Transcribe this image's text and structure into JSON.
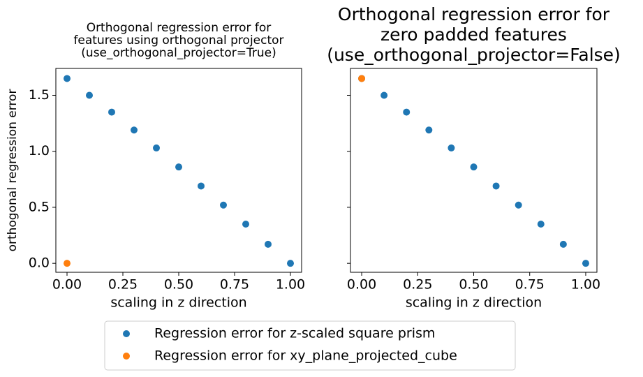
{
  "chart_data": [
    {
      "type": "scatter",
      "title": [
        "Orthogonal regression error for",
        "features using orthogonal projector",
        "(use_orthogonal_projector=True)"
      ],
      "x_label": "scaling in z direction",
      "y_label": "orthogonal regression error",
      "series": [
        {
          "name": "Regression error for z-scaled square prism",
          "color": "#1f77b4",
          "x": [
            0,
            0.1,
            0.2,
            0.3,
            0.4,
            0.5,
            0.6,
            0.7,
            0.8,
            0.9,
            1.0
          ],
          "values": [
            1.65,
            1.5,
            1.35,
            1.19,
            1.03,
            0.86,
            0.69,
            0.52,
            0.35,
            0.17,
            0
          ]
        },
        {
          "name": "Regression error for xy_plane_projected_cube",
          "color": "#ff7f0e",
          "x": [
            0
          ],
          "values": [
            0
          ]
        }
      ],
      "xlim": [
        -0.05,
        1.05
      ],
      "ylim": [
        -0.08,
        1.74
      ],
      "xticks": [
        {
          "value": 0,
          "label": "0.00"
        },
        {
          "value": 0.25,
          "label": "0.25"
        },
        {
          "value": 0.5,
          "label": "0.50"
        },
        {
          "value": 0.75,
          "label": "0.75"
        },
        {
          "value": 1,
          "label": "1.00"
        }
      ],
      "yticks": [
        {
          "value": 0,
          "label": "0.0"
        },
        0.5,
        {
          "value": 1,
          "label": "1.0"
        },
        1.5
      ]
    },
    {
      "type": "scatter",
      "title": [
        "Orthogonal regression error for",
        "zero padded features",
        "(use_orthogonal_projector=False)"
      ],
      "x_label": "scaling in z direction",
      "series": [
        {
          "color": "#1f77b4",
          "x": [
            0,
            0.1,
            0.2,
            0.3,
            0.4,
            0.5,
            0.6,
            0.7,
            0.8,
            0.9,
            1.0
          ],
          "values": [
            1.65,
            1.5,
            1.35,
            1.19,
            1.03,
            0.86,
            0.69,
            0.52,
            0.35,
            0.17,
            0
          ]
        },
        {
          "color": "#ff7f0e",
          "x": [
            0
          ],
          "values": [
            1.65
          ]
        }
      ],
      "xlim": [
        -0.05,
        1.05
      ],
      "ylim": [
        -0.08,
        1.74
      ],
      "xticks": [
        {
          "value": 0,
          "label": "0.00"
        },
        {
          "value": 0.25,
          "label": "0.25"
        },
        {
          "value": 0.5,
          "label": "0.50"
        },
        {
          "value": 0.75,
          "label": "0.75"
        },
        {
          "value": 1,
          "label": "1.00"
        }
      ],
      "yticks": [
        0,
        0.5,
        1,
        1.5
      ]
    }
  ]
}
